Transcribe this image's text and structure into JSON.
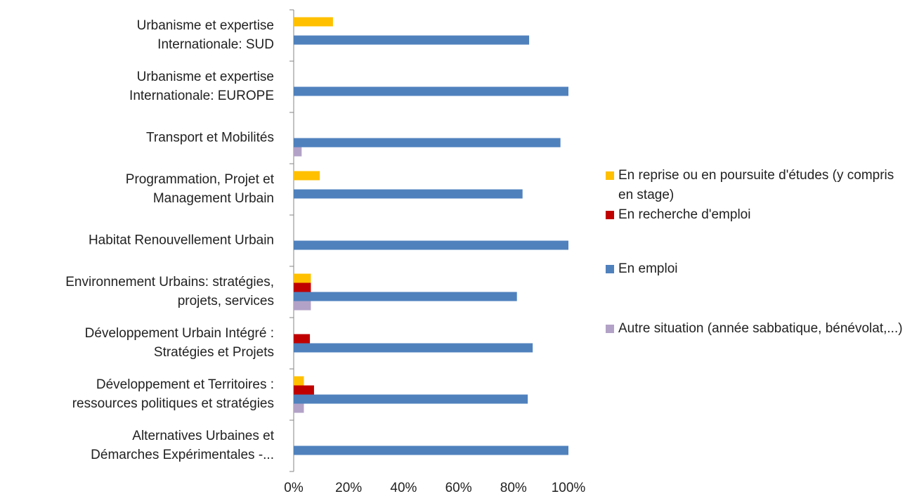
{
  "chart_data": {
    "type": "hbar",
    "categories": [
      "Urbanisme et expertise\nInternationale: SUD",
      "Urbanisme et expertise\nInternationale: EUROPE",
      "Transport et Mobilités",
      "Programmation, Projet et\nManagement Urbain",
      "Habitat Renouvellement Urbain",
      "Environnement Urbains: stratégies,\nprojets, services",
      "Développement Urbain Intégré :\nStratégies et Projets",
      "Développement et Territoires :\nressources politiques et stratégies",
      "Alternatives Urbaines et\nDémarches Expérimentales -..."
    ],
    "series": [
      {
        "name": "En reprise ou en poursuite d'études (y compris en stage)",
        "color": "#ffc000",
        "values": [
          14.3,
          0,
          0,
          9.5,
          0,
          6.25,
          0,
          3.7,
          0
        ]
      },
      {
        "name": "En recherche d'emploi",
        "color": "#c00000",
        "values": [
          0,
          0,
          0,
          0,
          0,
          6.25,
          5.9,
          7.4,
          0
        ]
      },
      {
        "name": "En emploi",
        "color": "#4f81bd",
        "values": [
          85.7,
          100,
          97.1,
          83.3,
          100,
          81.25,
          87,
          85.2,
          100
        ]
      },
      {
        "name": "Autre situation (année sabbatique, bénévolat,...)",
        "color": "#b3a2c7",
        "values": [
          0,
          0,
          2.9,
          0,
          0,
          6.25,
          0,
          3.7,
          0
        ]
      }
    ],
    "xlim": [
      0,
      100
    ],
    "xticks": [
      {
        "value": 0,
        "label": "0%"
      },
      {
        "value": 20,
        "label": "20%"
      },
      {
        "value": 40,
        "label": "40%"
      },
      {
        "value": 60,
        "label": "60%"
      },
      {
        "value": 80,
        "label": "80%"
      },
      {
        "value": 100,
        "label": "100%"
      }
    ],
    "legend": "right"
  }
}
